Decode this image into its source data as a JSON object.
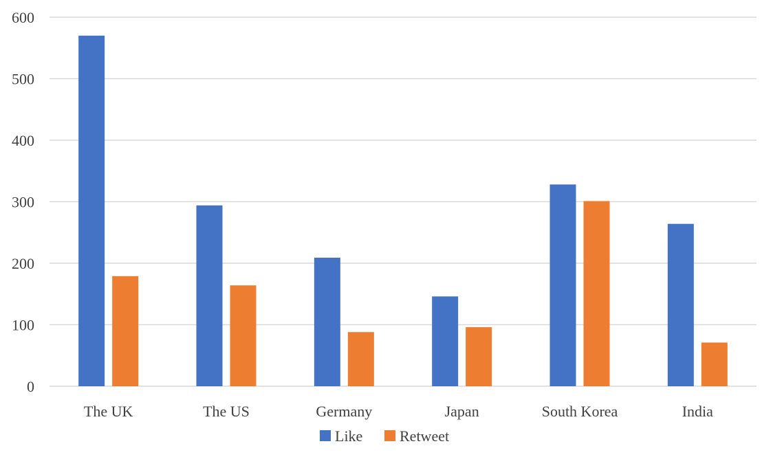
{
  "chart_data": {
    "type": "bar",
    "title": "",
    "xlabel": "",
    "ylabel": "",
    "categories": [
      "The UK",
      "The US",
      "Germany",
      "Japan",
      "South Korea",
      "India"
    ],
    "series": [
      {
        "name": "Like",
        "color": "#4472C4",
        "values": [
          570,
          294,
          209,
          146,
          328,
          264
        ]
      },
      {
        "name": "Retweet",
        "color": "#ED7D31",
        "values": [
          179,
          164,
          88,
          96,
          301,
          71
        ]
      }
    ],
    "ylim": [
      0,
      600
    ],
    "yticks": [
      0,
      100,
      200,
      300,
      400,
      500,
      600
    ],
    "grid": true,
    "legend_position": "bottom"
  }
}
